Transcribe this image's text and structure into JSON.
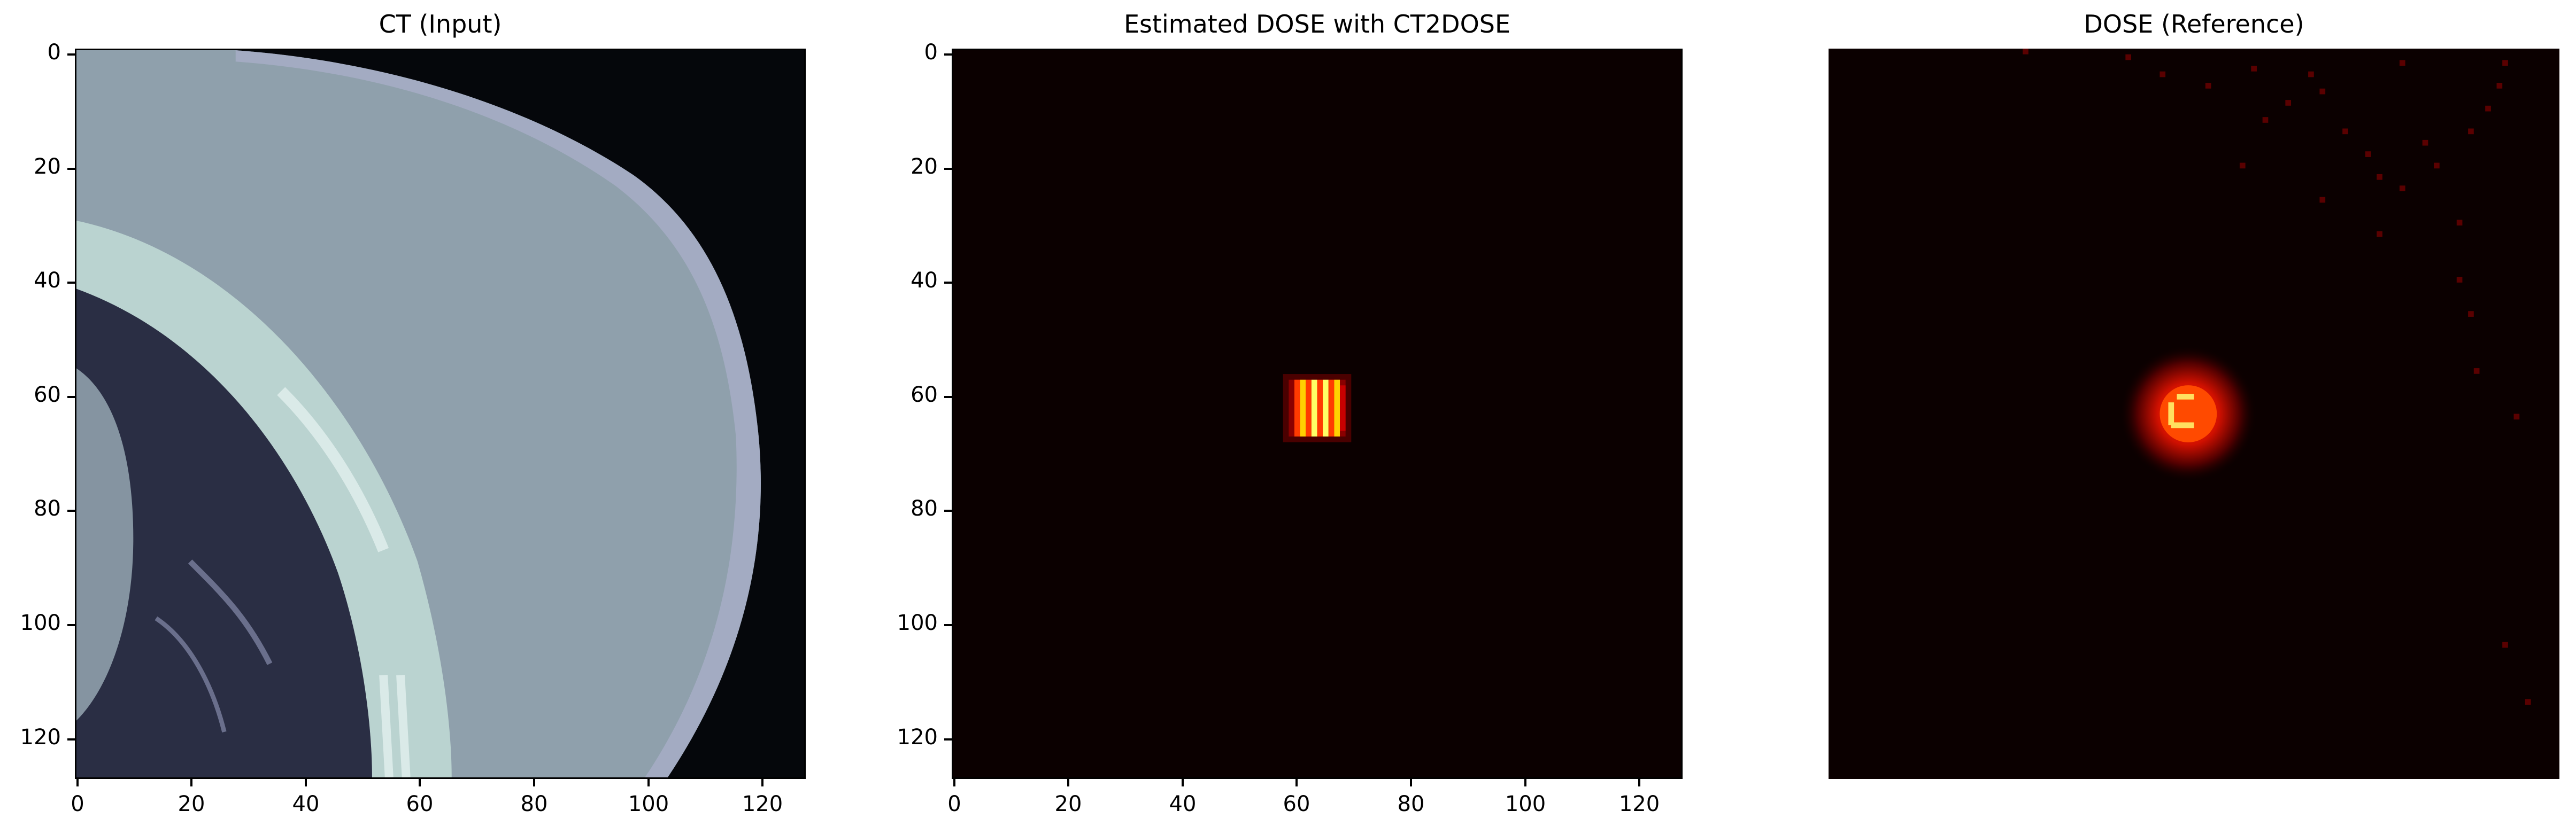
{
  "panels": [
    {
      "title": "CT (Input)",
      "axes": true
    },
    {
      "title": "Estimated DOSE with CT2DOSE",
      "axes": true
    },
    {
      "title": "DOSE (Reference)",
      "axes": false
    }
  ],
  "axis": {
    "x_ticks": [
      "0",
      "20",
      "40",
      "60",
      "80",
      "100",
      "120"
    ],
    "y_ticks": [
      "0",
      "20",
      "40",
      "60",
      "80",
      "100",
      "120"
    ],
    "range": [
      0,
      127
    ]
  },
  "colors": {
    "ct_background": "#05070b",
    "ct_tissue": "#8fa0ac",
    "ct_skin": "#a8aec8",
    "ct_lung": "#2a2e44",
    "ct_rib": "#c2dcd6",
    "dose_background": "#0b0000",
    "dose_hot": "#ffff66",
    "dose_mid": "#ff3a00"
  }
}
